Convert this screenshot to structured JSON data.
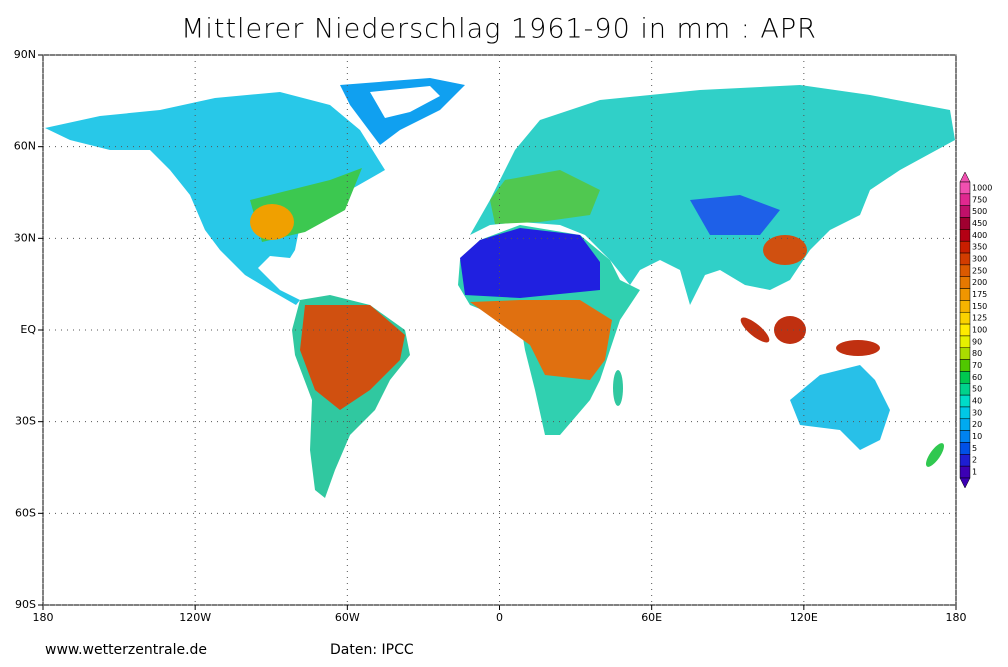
{
  "header": {
    "title": "Mittlerer Niederschlag 1961-90 in mm : APR"
  },
  "map": {
    "lon_ticks": [
      {
        "value": -180,
        "label": "180"
      },
      {
        "value": -120,
        "label": "120W"
      },
      {
        "value": -60,
        "label": "60W"
      },
      {
        "value": 0,
        "label": "0"
      },
      {
        "value": 60,
        "label": "60E"
      },
      {
        "value": 120,
        "label": "120E"
      },
      {
        "value": 180,
        "label": "180"
      }
    ],
    "lat_ticks": [
      {
        "value": 90,
        "label": "90N"
      },
      {
        "value": 60,
        "label": "60N"
      },
      {
        "value": 30,
        "label": "30N"
      },
      {
        "value": 0,
        "label": "EQ"
      },
      {
        "value": -30,
        "label": "30S"
      },
      {
        "value": -60,
        "label": "60S"
      },
      {
        "value": -90,
        "label": "90S"
      }
    ]
  },
  "legend": {
    "levels": [
      1000,
      750,
      500,
      450,
      400,
      350,
      300,
      250,
      200,
      175,
      150,
      125,
      100,
      90,
      80,
      70,
      60,
      50,
      40,
      30,
      20,
      10,
      5,
      2,
      1
    ],
    "colors": [
      "#f050b0",
      "#e02890",
      "#c0106a",
      "#a00030",
      "#b40014",
      "#c81e00",
      "#d23c00",
      "#dc5a00",
      "#e67800",
      "#f09600",
      "#f5b400",
      "#fad200",
      "#ffeb00",
      "#e6f000",
      "#aadc00",
      "#50c800",
      "#00c850",
      "#00d28c",
      "#00dcc8",
      "#00c8e6",
      "#00aaf0",
      "#0082f0",
      "#0050e6",
      "#1e1ed2",
      "#3c00b4"
    ]
  },
  "footer": {
    "site": "www.wetterzentrale.de",
    "source": "Daten: IPCC"
  }
}
